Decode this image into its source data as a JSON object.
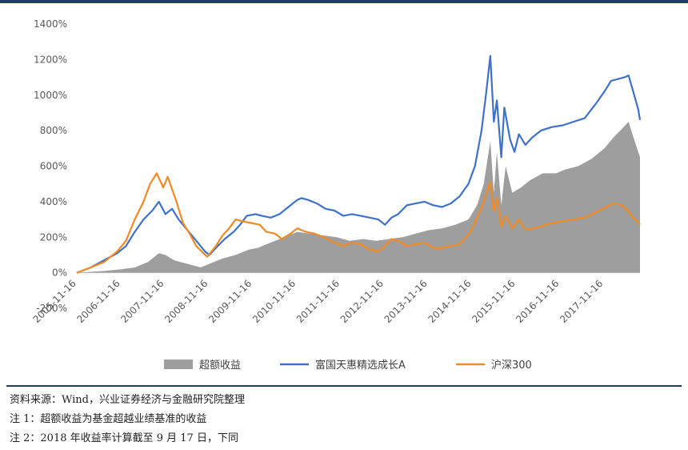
{
  "chart_data": {
    "type": "line",
    "y_ticks": [
      "1400%",
      "1200%",
      "1000%",
      "800%",
      "600%",
      "400%",
      "200%",
      "0%",
      "-200%"
    ],
    "ylim": [
      -200,
      1400
    ],
    "x_ticks": [
      "2005-11-16",
      "2006-11-16",
      "2007-11-16",
      "2008-11-16",
      "2009-11-16",
      "2010-11-16",
      "2011-11-16",
      "2012-11-16",
      "2013-11-16",
      "2014-11-16",
      "2015-11-16",
      "2016-11-16",
      "2017-11-16"
    ],
    "x_start_year": 2005.88,
    "x_end_year": 2018.71,
    "series": [
      {
        "name": "超额收益",
        "kind": "area",
        "color": "#9e9e9e",
        "points": [
          [
            2005.88,
            0
          ],
          [
            2006.5,
            10
          ],
          [
            2006.9,
            20
          ],
          [
            2007.2,
            30
          ],
          [
            2007.5,
            60
          ],
          [
            2007.75,
            110
          ],
          [
            2007.9,
            100
          ],
          [
            2008.1,
            70
          ],
          [
            2008.4,
            50
          ],
          [
            2008.7,
            30
          ],
          [
            2008.9,
            50
          ],
          [
            2009.2,
            80
          ],
          [
            2009.5,
            100
          ],
          [
            2009.8,
            130
          ],
          [
            2010.0,
            140
          ],
          [
            2010.3,
            170
          ],
          [
            2010.6,
            200
          ],
          [
            2010.9,
            230
          ],
          [
            2011.2,
            220
          ],
          [
            2011.5,
            210
          ],
          [
            2011.8,
            200
          ],
          [
            2012.1,
            180
          ],
          [
            2012.4,
            190
          ],
          [
            2012.7,
            180
          ],
          [
            2013.0,
            190
          ],
          [
            2013.3,
            200
          ],
          [
            2013.6,
            220
          ],
          [
            2013.9,
            240
          ],
          [
            2014.2,
            250
          ],
          [
            2014.5,
            270
          ],
          [
            2014.8,
            300
          ],
          [
            2015.0,
            380
          ],
          [
            2015.15,
            500
          ],
          [
            2015.3,
            740
          ],
          [
            2015.38,
            450
          ],
          [
            2015.45,
            680
          ],
          [
            2015.55,
            380
          ],
          [
            2015.65,
            600
          ],
          [
            2015.8,
            450
          ],
          [
            2016.0,
            480
          ],
          [
            2016.2,
            520
          ],
          [
            2016.5,
            560
          ],
          [
            2016.8,
            560
          ],
          [
            2017.0,
            580
          ],
          [
            2017.3,
            600
          ],
          [
            2017.6,
            640
          ],
          [
            2017.9,
            700
          ],
          [
            2018.1,
            760
          ],
          [
            2018.3,
            810
          ],
          [
            2018.45,
            850
          ],
          [
            2018.55,
            770
          ],
          [
            2018.71,
            650
          ]
        ]
      },
      {
        "name": "富国天惠精选成长A",
        "kind": "line",
        "color": "#3e71c9",
        "points": [
          [
            2005.88,
            0
          ],
          [
            2006.2,
            30
          ],
          [
            2006.5,
            70
          ],
          [
            2006.8,
            110
          ],
          [
            2007.0,
            150
          ],
          [
            2007.2,
            230
          ],
          [
            2007.4,
            300
          ],
          [
            2007.6,
            350
          ],
          [
            2007.75,
            400
          ],
          [
            2007.9,
            330
          ],
          [
            2008.05,
            360
          ],
          [
            2008.2,
            300
          ],
          [
            2008.4,
            240
          ],
          [
            2008.6,
            180
          ],
          [
            2008.8,
            120
          ],
          [
            2008.9,
            100
          ],
          [
            2009.05,
            140
          ],
          [
            2009.25,
            190
          ],
          [
            2009.45,
            230
          ],
          [
            2009.6,
            270
          ],
          [
            2009.75,
            320
          ],
          [
            2009.95,
            330
          ],
          [
            2010.1,
            320
          ],
          [
            2010.3,
            310
          ],
          [
            2010.5,
            330
          ],
          [
            2010.7,
            370
          ],
          [
            2010.9,
            410
          ],
          [
            2011.0,
            420
          ],
          [
            2011.15,
            410
          ],
          [
            2011.35,
            390
          ],
          [
            2011.55,
            360
          ],
          [
            2011.75,
            350
          ],
          [
            2011.95,
            320
          ],
          [
            2012.15,
            330
          ],
          [
            2012.35,
            320
          ],
          [
            2012.55,
            310
          ],
          [
            2012.75,
            300
          ],
          [
            2012.9,
            270
          ],
          [
            2013.05,
            310
          ],
          [
            2013.2,
            330
          ],
          [
            2013.4,
            380
          ],
          [
            2013.6,
            390
          ],
          [
            2013.8,
            400
          ],
          [
            2014.0,
            380
          ],
          [
            2014.2,
            370
          ],
          [
            2014.4,
            390
          ],
          [
            2014.6,
            430
          ],
          [
            2014.8,
            500
          ],
          [
            2014.95,
            600
          ],
          [
            2015.1,
            800
          ],
          [
            2015.2,
            1000
          ],
          [
            2015.3,
            1220
          ],
          [
            2015.38,
            850
          ],
          [
            2015.45,
            970
          ],
          [
            2015.55,
            650
          ],
          [
            2015.62,
            930
          ],
          [
            2015.75,
            750
          ],
          [
            2015.85,
            680
          ],
          [
            2015.95,
            780
          ],
          [
            2016.1,
            720
          ],
          [
            2016.25,
            760
          ],
          [
            2016.45,
            800
          ],
          [
            2016.7,
            820
          ],
          [
            2016.95,
            830
          ],
          [
            2017.2,
            850
          ],
          [
            2017.45,
            870
          ],
          [
            2017.7,
            950
          ],
          [
            2017.9,
            1020
          ],
          [
            2018.05,
            1080
          ],
          [
            2018.2,
            1090
          ],
          [
            2018.35,
            1100
          ],
          [
            2018.45,
            1110
          ],
          [
            2018.52,
            1050
          ],
          [
            2018.6,
            980
          ],
          [
            2018.67,
            920
          ],
          [
            2018.71,
            860
          ]
        ]
      },
      {
        "name": "沪深300",
        "kind": "line",
        "color": "#f08a24",
        "points": [
          [
            2005.88,
            0
          ],
          [
            2006.2,
            30
          ],
          [
            2006.5,
            60
          ],
          [
            2006.8,
            120
          ],
          [
            2007.0,
            180
          ],
          [
            2007.2,
            300
          ],
          [
            2007.4,
            400
          ],
          [
            2007.55,
            500
          ],
          [
            2007.7,
            560
          ],
          [
            2007.85,
            480
          ],
          [
            2007.95,
            540
          ],
          [
            2008.15,
            400
          ],
          [
            2008.3,
            280
          ],
          [
            2008.45,
            220
          ],
          [
            2008.6,
            150
          ],
          [
            2008.85,
            90
          ],
          [
            2009.05,
            150
          ],
          [
            2009.2,
            210
          ],
          [
            2009.35,
            250
          ],
          [
            2009.5,
            300
          ],
          [
            2009.65,
            290
          ],
          [
            2009.85,
            280
          ],
          [
            2010.05,
            270
          ],
          [
            2010.2,
            230
          ],
          [
            2010.4,
            220
          ],
          [
            2010.55,
            190
          ],
          [
            2010.75,
            220
          ],
          [
            2010.9,
            250
          ],
          [
            2011.1,
            230
          ],
          [
            2011.3,
            220
          ],
          [
            2011.5,
            200
          ],
          [
            2011.75,
            170
          ],
          [
            2011.95,
            150
          ],
          [
            2012.15,
            170
          ],
          [
            2012.35,
            160
          ],
          [
            2012.55,
            130
          ],
          [
            2012.75,
            120
          ],
          [
            2012.9,
            150
          ],
          [
            2013.05,
            190
          ],
          [
            2013.2,
            180
          ],
          [
            2013.4,
            150
          ],
          [
            2013.6,
            160
          ],
          [
            2013.8,
            170
          ],
          [
            2014.0,
            140
          ],
          [
            2014.2,
            140
          ],
          [
            2014.4,
            150
          ],
          [
            2014.6,
            160
          ],
          [
            2014.85,
            230
          ],
          [
            2015.0,
            310
          ],
          [
            2015.15,
            400
          ],
          [
            2015.3,
            510
          ],
          [
            2015.38,
            350
          ],
          [
            2015.45,
            420
          ],
          [
            2015.55,
            260
          ],
          [
            2015.65,
            320
          ],
          [
            2015.8,
            250
          ],
          [
            2015.95,
            300
          ],
          [
            2016.1,
            240
          ],
          [
            2016.25,
            250
          ],
          [
            2016.45,
            260
          ],
          [
            2016.7,
            280
          ],
          [
            2016.95,
            290
          ],
          [
            2017.2,
            300
          ],
          [
            2017.45,
            310
          ],
          [
            2017.7,
            340
          ],
          [
            2017.95,
            370
          ],
          [
            2018.1,
            390
          ],
          [
            2018.25,
            385
          ],
          [
            2018.4,
            360
          ],
          [
            2018.55,
            310
          ],
          [
            2018.65,
            290
          ],
          [
            2018.71,
            270
          ]
        ]
      }
    ]
  },
  "notes": {
    "source": "资料来源：Wind，兴业证券经济与金融研究院整理",
    "note1": "注 1：超额收益为基金超越业绩基准的收益",
    "note2": "注 2：2018 年收益率计算截至 9 月 17 日，下同"
  }
}
